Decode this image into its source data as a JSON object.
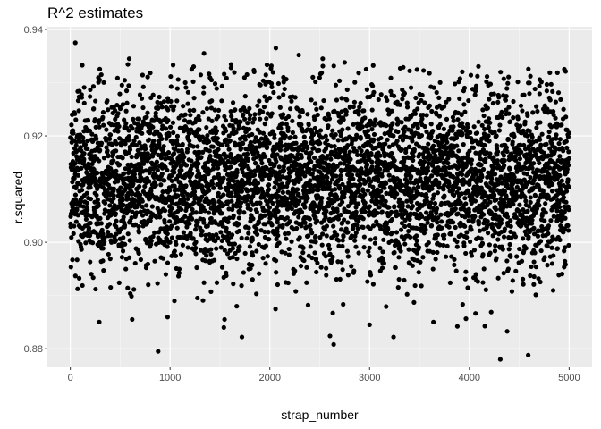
{
  "chart_data": {
    "type": "scatter",
    "title": "R^2 estimates",
    "xlabel": "strap_number",
    "ylabel": "r.squared",
    "xlim": [
      -230,
      5230
    ],
    "ylim": [
      0.8765,
      0.9405
    ],
    "x_ticks": [
      0,
      1000,
      2000,
      3000,
      4000,
      5000
    ],
    "x_tick_labels": [
      "0",
      "1000",
      "2000",
      "3000",
      "4000",
      "5000"
    ],
    "y_ticks": [
      0.88,
      0.9,
      0.92,
      0.94
    ],
    "y_tick_labels": [
      "0.88",
      "0.90",
      "0.92",
      "0.94"
    ],
    "grid": true,
    "background": "#EBEBEB",
    "point_color": "#000000",
    "n_points": 5000,
    "distribution": {
      "mean": 0.9118,
      "sd": 0.0085
    },
    "highlighted_points": [
      {
        "x": 50,
        "y": 0.9375
      },
      {
        "x": 590,
        "y": 0.9345
      },
      {
        "x": 1340,
        "y": 0.9355
      },
      {
        "x": 2060,
        "y": 0.9365
      },
      {
        "x": 2290,
        "y": 0.9352
      },
      {
        "x": 2530,
        "y": 0.9345
      },
      {
        "x": 2750,
        "y": 0.9338
      },
      {
        "x": 880,
        "y": 0.8795
      },
      {
        "x": 1720,
        "y": 0.8822
      },
      {
        "x": 2640,
        "y": 0.8808
      },
      {
        "x": 3240,
        "y": 0.8822
      },
      {
        "x": 4310,
        "y": 0.878
      },
      {
        "x": 4590,
        "y": 0.8788
      },
      {
        "x": 290,
        "y": 0.885
      },
      {
        "x": 620,
        "y": 0.8855
      },
      {
        "x": 3000,
        "y": 0.8845
      },
      {
        "x": 3640,
        "y": 0.885
      },
      {
        "x": 3880,
        "y": 0.8842
      }
    ]
  }
}
